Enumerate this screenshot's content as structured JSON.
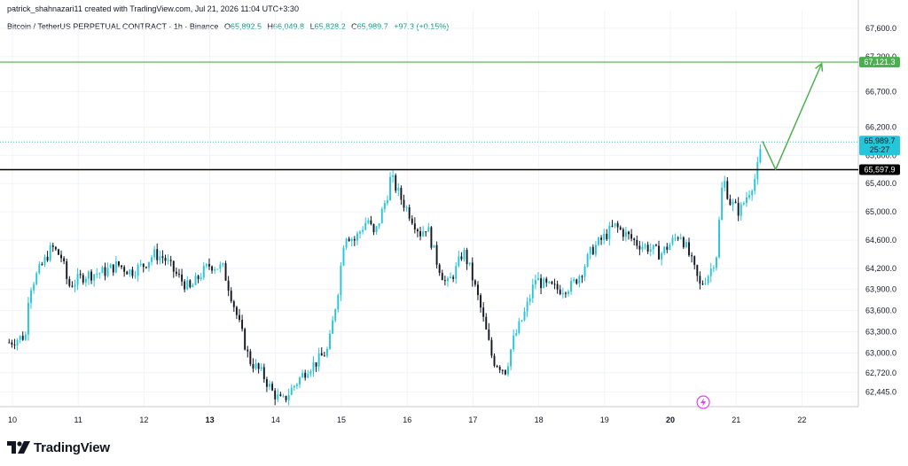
{
  "header": {
    "credit": "patrick_shahnazari11 created with TradingView.com, Jul 21, 2026 11:04 UTC+3:30",
    "symbol": "Bitcoin / TetherUS PERPETUAL CONTRACT · 1h · Binance",
    "open_label": "O",
    "open": "65,892.5",
    "high_label": "H",
    "high": "66,049.8",
    "low_label": "L",
    "low": "65,828.2",
    "close_label": "C",
    "close": "65,989.7",
    "change": "+97.3 (+0.15%)"
  },
  "logo": {
    "text": "TradingView"
  },
  "colors": {
    "up": "#26c6da",
    "down": "#131722",
    "target": "#4caf50",
    "support": "#000000",
    "price_tag": "#26c6da",
    "grid": "#f0f3fa"
  },
  "chart_data": {
    "type": "candlestick",
    "symbol": "BTCUSDT.P",
    "timeframe": "1h",
    "x_ticks": [
      {
        "label": "10",
        "day": 10,
        "bold": false
      },
      {
        "label": "11",
        "day": 11,
        "bold": false
      },
      {
        "label": "12",
        "day": 12,
        "bold": false
      },
      {
        "label": "13",
        "day": 13,
        "bold": true
      },
      {
        "label": "14",
        "day": 14,
        "bold": false
      },
      {
        "label": "15",
        "day": 15,
        "bold": false
      },
      {
        "label": "16",
        "day": 16,
        "bold": false
      },
      {
        "label": "17",
        "day": 17,
        "bold": false
      },
      {
        "label": "18",
        "day": 18,
        "bold": false
      },
      {
        "label": "19",
        "day": 19,
        "bold": false
      },
      {
        "label": "20",
        "day": 20,
        "bold": true
      },
      {
        "label": "21",
        "day": 21,
        "bold": false
      },
      {
        "label": "22",
        "day": 22,
        "bold": false
      }
    ],
    "y_ticks": [
      "67,600.0",
      "67,200.0",
      "66,700.0",
      "66,200.0",
      "65,800.0",
      "65,400.0",
      "65,000.0",
      "64,600.0",
      "64,200.0",
      "63,900.0",
      "63,600.0",
      "63,300.0",
      "63,000.0",
      "62,720.0",
      "62,445.0"
    ],
    "ylim": [
      62250,
      67850
    ],
    "key_points": [
      [
        9.95,
        63150
      ],
      [
        10.2,
        63250
      ],
      [
        10.25,
        63900
      ],
      [
        10.6,
        64500
      ],
      [
        10.75,
        64350
      ],
      [
        10.85,
        63950
      ],
      [
        11.1,
        64100
      ],
      [
        11.4,
        64150
      ],
      [
        11.6,
        64250
      ],
      [
        11.8,
        64150
      ],
      [
        12.0,
        64250
      ],
      [
        12.15,
        64400
      ],
      [
        12.3,
        64350
      ],
      [
        12.5,
        64100
      ],
      [
        12.7,
        63900
      ],
      [
        12.85,
        64100
      ],
      [
        13.0,
        64250
      ],
      [
        13.2,
        64200
      ],
      [
        13.3,
        63900
      ],
      [
        13.45,
        63400
      ],
      [
        13.6,
        62900
      ],
      [
        13.8,
        62700
      ],
      [
        13.95,
        62450
      ],
      [
        14.1,
        62300
      ],
      [
        14.25,
        62500
      ],
      [
        14.5,
        62800
      ],
      [
        14.6,
        62850
      ],
      [
        14.8,
        63050
      ],
      [
        14.95,
        63900
      ],
      [
        15.05,
        64700
      ],
      [
        15.2,
        64600
      ],
      [
        15.4,
        64900
      ],
      [
        15.5,
        64650
      ],
      [
        15.7,
        65250
      ],
      [
        15.75,
        65500
      ],
      [
        15.9,
        65200
      ],
      [
        16.05,
        64950
      ],
      [
        16.2,
        64700
      ],
      [
        16.3,
        64800
      ],
      [
        16.45,
        64300
      ],
      [
        16.6,
        63950
      ],
      [
        16.75,
        64200
      ],
      [
        16.85,
        64450
      ],
      [
        16.95,
        64200
      ],
      [
        17.1,
        63700
      ],
      [
        17.3,
        62900
      ],
      [
        17.5,
        62750
      ],
      [
        17.6,
        63150
      ],
      [
        17.8,
        63600
      ],
      [
        17.95,
        64050
      ],
      [
        18.1,
        63950
      ],
      [
        18.3,
        63900
      ],
      [
        18.5,
        63950
      ],
      [
        18.65,
        64150
      ],
      [
        18.8,
        64450
      ],
      [
        19.0,
        64650
      ],
      [
        19.15,
        64800
      ],
      [
        19.3,
        64700
      ],
      [
        19.5,
        64550
      ],
      [
        19.65,
        64500
      ],
      [
        19.85,
        64400
      ],
      [
        20.0,
        64550
      ],
      [
        20.15,
        64700
      ],
      [
        20.3,
        64350
      ],
      [
        20.45,
        63950
      ],
      [
        20.6,
        64150
      ],
      [
        20.7,
        64400
      ],
      [
        20.8,
        65500
      ],
      [
        20.9,
        65150
      ],
      [
        21.05,
        65000
      ],
      [
        21.15,
        65200
      ],
      [
        21.3,
        65500
      ],
      [
        21.4,
        66000
      ]
    ],
    "last_price": 65989.7,
    "support_level": 65597.9,
    "target_level": 67121.3,
    "price_labels": {
      "current": "65,989.7",
      "countdown": "25:27",
      "support": "65,597.9",
      "target": "67,121.3"
    },
    "projection": [
      {
        "day": 21.4,
        "price": 66000
      },
      {
        "day": 21.6,
        "price": 65600
      },
      {
        "day": 22.3,
        "price": 67100
      }
    ],
    "grid": true,
    "legend": "none"
  }
}
